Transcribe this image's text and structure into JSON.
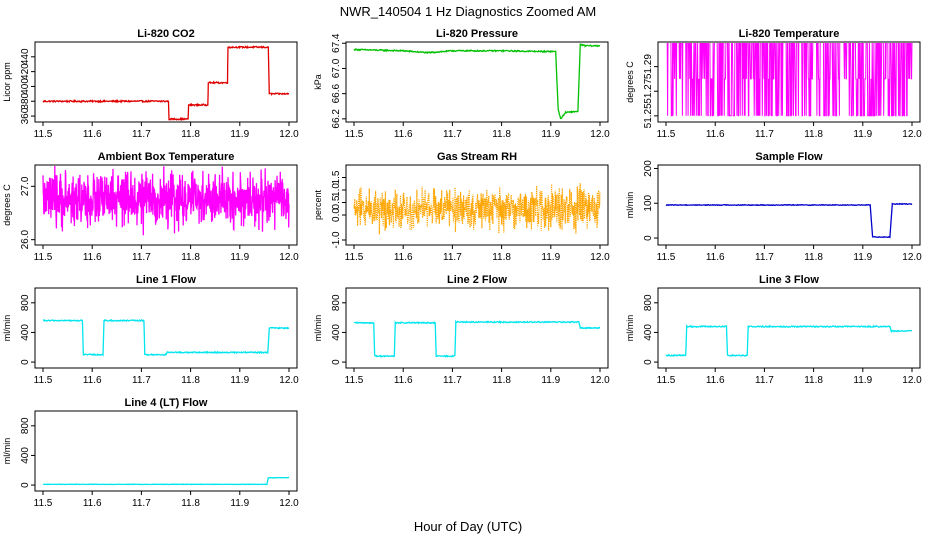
{
  "figure": {
    "title": "NWR_140504  1 Hz Diagnostics Zoomed AM",
    "xlabel": "Hour of Day (UTC)"
  },
  "chart_data": [
    {
      "type": "line",
      "title": "Li-820 CO2",
      "ylabel": "Licor ppm",
      "color": "#e00000",
      "xlim": [
        11.5,
        12.0
      ],
      "ylim": [
        352,
        460
      ],
      "xticks": [
        "11.5",
        "11.6",
        "11.7",
        "11.8",
        "11.9",
        "12.0"
      ],
      "yticks": [
        "360",
        "380",
        "400",
        "420",
        "440"
      ],
      "x": [
        11.5,
        11.755,
        11.756,
        11.795,
        11.796,
        11.835,
        11.836,
        11.875,
        11.876,
        11.958,
        11.96,
        12.0
      ],
      "y": [
        380,
        380,
        356,
        356,
        375,
        375,
        405,
        405,
        453,
        453,
        390,
        390
      ],
      "noise": 1
    },
    {
      "type": "line",
      "title": "Li-820 Pressure",
      "ylabel": "kPa",
      "color": "#00c000",
      "xlim": [
        11.5,
        12.0
      ],
      "ylim": [
        66.15,
        67.42
      ],
      "xticks": [
        "11.5",
        "11.6",
        "11.7",
        "11.8",
        "11.9",
        "12.0"
      ],
      "yticks": [
        "66.2",
        "66.6",
        "67.0",
        "67.4"
      ],
      "x": [
        11.5,
        11.6,
        11.65,
        11.7,
        11.8,
        11.88,
        11.91,
        11.915,
        11.92,
        11.93,
        11.955,
        11.96,
        11.97,
        12.0
      ],
      "y": [
        67.3,
        67.28,
        67.25,
        67.28,
        67.28,
        67.27,
        67.27,
        66.35,
        66.2,
        66.3,
        66.32,
        67.38,
        67.36,
        67.36
      ],
      "noise": 0.01
    },
    {
      "type": "line",
      "title": "Li-820 Temperature",
      "ylabel": "degrees C",
      "color": "#ff00ff",
      "xlim": [
        11.5,
        12.0
      ],
      "ylim": [
        51.245,
        51.31
      ],
      "xticks": [
        "11.5",
        "11.6",
        "11.7",
        "11.8",
        "11.9",
        "12.0"
      ],
      "yticks": [
        "51.25",
        "51.27",
        "51.29"
      ],
      "levels": [
        51.25,
        51.28,
        51.31
      ],
      "pattern": "square-toggle"
    },
    {
      "type": "line",
      "title": "Ambient Box Temperature",
      "ylabel": "degrees C",
      "color": "#ff00ff",
      "xlim": [
        11.5,
        12.0
      ],
      "ylim": [
        25.9,
        27.4
      ],
      "xticks": [
        "11.5",
        "11.6",
        "11.7",
        "11.8",
        "11.9",
        "12.0"
      ],
      "yticks": [
        "26.0",
        "27.0"
      ],
      "center": 26.75,
      "noise": 0.35
    },
    {
      "type": "line",
      "title": "Gas Stream RH",
      "ylabel": "percent",
      "color": "#ffa500",
      "xlim": [
        11.5,
        12.0
      ],
      "ylim": [
        -1.2,
        2.0
      ],
      "xticks": [
        "11.5",
        "11.6",
        "11.7",
        "11.8",
        "11.9",
        "12.0"
      ],
      "yticks": [
        "-1.0",
        "0.0",
        "0.5",
        "1.0",
        "1.5"
      ],
      "center": 0.25,
      "noise": 0.55,
      "dotted": true
    },
    {
      "type": "line",
      "title": "Sample Flow",
      "ylabel": "ml/min",
      "color": "#0000cc",
      "xlim": [
        11.5,
        12.0
      ],
      "ylim": [
        -20,
        210
      ],
      "xticks": [
        "11.5",
        "11.6",
        "11.7",
        "11.8",
        "11.9",
        "12.0"
      ],
      "yticks": [
        "0",
        "100",
        "200"
      ],
      "x": [
        11.5,
        11.915,
        11.92,
        11.955,
        11.96,
        12.0
      ],
      "y": [
        95,
        95,
        3,
        3,
        98,
        98
      ],
      "noise": 1
    },
    {
      "type": "line",
      "title": "Line 1 Flow",
      "ylabel": "ml/min",
      "color": "#00e5ee",
      "xlim": [
        11.5,
        12.0
      ],
      "ylim": [
        -80,
        1000
      ],
      "xticks": [
        "11.5",
        "11.6",
        "11.7",
        "11.8",
        "11.9",
        "12.0"
      ],
      "yticks": [
        "0",
        "400",
        "800"
      ],
      "x": [
        11.5,
        11.58,
        11.582,
        11.622,
        11.624,
        11.705,
        11.707,
        11.75,
        11.752,
        11.957,
        11.96,
        12.0
      ],
      "y": [
        560,
        560,
        100,
        100,
        560,
        560,
        100,
        100,
        130,
        130,
        460,
        460
      ],
      "noise": 8
    },
    {
      "type": "line",
      "title": "Line 2 Flow",
      "ylabel": "ml/min",
      "color": "#00e5ee",
      "xlim": [
        11.5,
        12.0
      ],
      "ylim": [
        -80,
        1000
      ],
      "xticks": [
        "11.5",
        "11.6",
        "11.7",
        "11.8",
        "11.9",
        "12.0"
      ],
      "yticks": [
        "0",
        "400",
        "800"
      ],
      "x": [
        11.5,
        11.54,
        11.542,
        11.582,
        11.584,
        11.665,
        11.667,
        11.705,
        11.707,
        11.957,
        11.96,
        12.0
      ],
      "y": [
        530,
        530,
        80,
        80,
        530,
        530,
        80,
        80,
        540,
        540,
        460,
        460
      ],
      "noise": 8
    },
    {
      "type": "line",
      "title": "Line 3 Flow",
      "ylabel": "ml/min",
      "color": "#00e5ee",
      "xlim": [
        11.5,
        12.0
      ],
      "ylim": [
        -80,
        1000
      ],
      "xticks": [
        "11.5",
        "11.6",
        "11.7",
        "11.8",
        "11.9",
        "12.0"
      ],
      "yticks": [
        "0",
        "400",
        "800"
      ],
      "x": [
        11.5,
        11.54,
        11.542,
        11.623,
        11.625,
        11.665,
        11.667,
        11.955,
        11.958,
        12.0
      ],
      "y": [
        90,
        90,
        480,
        480,
        90,
        90,
        480,
        480,
        420,
        420
      ],
      "noise": 8
    },
    {
      "type": "line",
      "title": "Line 4 (LT) Flow",
      "ylabel": "ml/min",
      "color": "#00e5ee",
      "xlim": [
        11.5,
        12.0
      ],
      "ylim": [
        -80,
        1000
      ],
      "xticks": [
        "11.5",
        "11.6",
        "11.7",
        "11.8",
        "11.9",
        "12.0"
      ],
      "yticks": [
        "0",
        "400",
        "800"
      ],
      "x": [
        11.5,
        11.955,
        11.958,
        12.0
      ],
      "y": [
        10,
        10,
        100,
        100
      ],
      "noise": 3
    }
  ]
}
